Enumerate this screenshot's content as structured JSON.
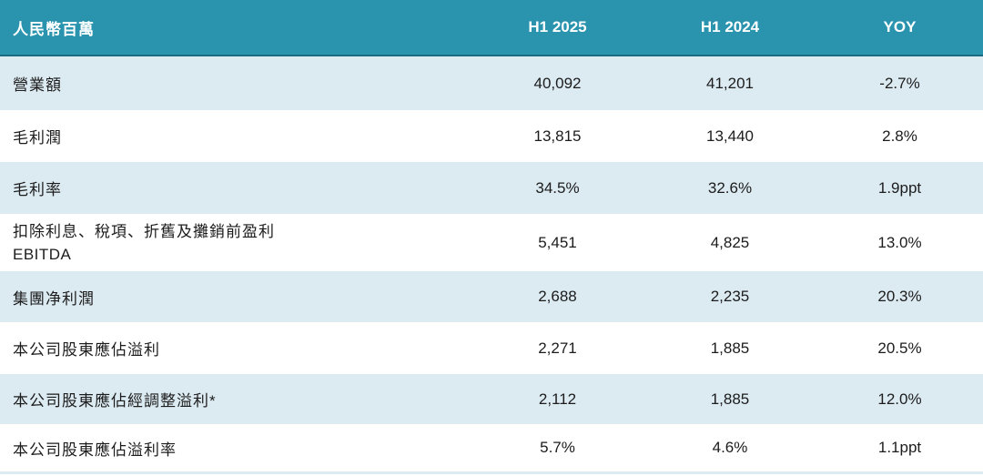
{
  "table": {
    "unit_label": "人民幣百萬",
    "columns": [
      "H1 2025",
      "H1 2024",
      "YOY"
    ],
    "rows": [
      {
        "label": "營業額",
        "h1_2025": "40,092",
        "h1_2024": "41,201",
        "yoy": "-2.7%"
      },
      {
        "label": "毛利潤",
        "h1_2025": "13,815",
        "h1_2024": "13,440",
        "yoy": "2.8%"
      },
      {
        "label": "毛利率",
        "h1_2025": "34.5%",
        "h1_2024": "32.6%",
        "yoy": "1.9ppt"
      },
      {
        "label": "扣除利息、稅項、折舊及攤銷前盈利",
        "label_line2": "EBITDA",
        "h1_2025": "5,451",
        "h1_2024": "4,825",
        "yoy": "13.0%"
      },
      {
        "label": "集團净利潤",
        "h1_2025": "2,688",
        "h1_2024": "2,235",
        "yoy": "20.3%"
      },
      {
        "label": "本公司股東應佔溢利",
        "h1_2025": "2,271",
        "h1_2024": "1,885",
        "yoy": "20.5%"
      },
      {
        "label": "本公司股東應佔經調整溢利*",
        "h1_2025": "2,112",
        "h1_2024": "1,885",
        "yoy": "12.0%"
      },
      {
        "label": "本公司股東應佔溢利率",
        "h1_2025": "5.7%",
        "h1_2024": "4.6%",
        "yoy": "1.1ppt"
      }
    ]
  },
  "colors": {
    "header_bg": "#2a94ae",
    "header_border": "#1a6a82",
    "alt_row_bg": "#dceaf2",
    "text": "#1c1c1c"
  }
}
